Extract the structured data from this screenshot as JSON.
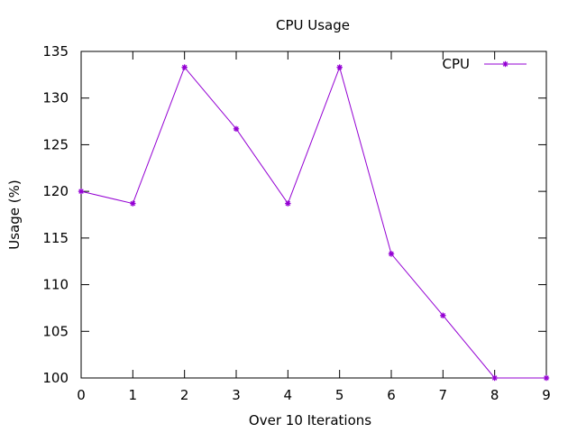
{
  "chart_data": {
    "type": "line",
    "title": "CPU Usage",
    "xlabel": "Over 10 Iterations",
    "ylabel": "Usage (%)",
    "x": [
      0,
      1,
      2,
      3,
      4,
      5,
      6,
      7,
      8,
      9
    ],
    "series": [
      {
        "name": "CPU",
        "values": [
          120,
          118.7,
          133.3,
          126.7,
          118.7,
          133.3,
          113.3,
          106.7,
          100,
          100
        ],
        "color": "#9400d3"
      }
    ],
    "xlim": [
      0,
      9
    ],
    "ylim": [
      100,
      135
    ],
    "xticks": [
      "0",
      "1",
      "2",
      "3",
      "4",
      "5",
      "6",
      "7",
      "8",
      "9"
    ],
    "yticks": [
      "100",
      "105",
      "110",
      "115",
      "120",
      "125",
      "130",
      "135"
    ],
    "legend_position": "top-right",
    "grid": false,
    "marker": "asterisk"
  }
}
